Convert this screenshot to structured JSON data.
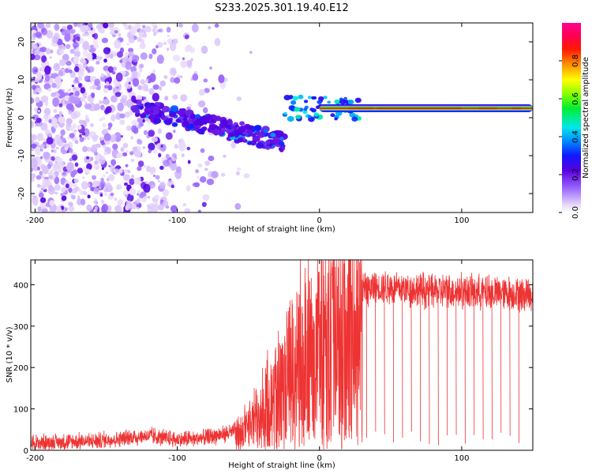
{
  "title": "S233.2025.301.19.40.E12",
  "colorbar": {
    "label": "Normalized spectral amplitude",
    "ticks": [
      "0.0",
      "0.2",
      "0.4",
      "0.6",
      "0.8"
    ],
    "tick_values": [
      0.0,
      0.2,
      0.4,
      0.6,
      0.8
    ],
    "range": [
      0,
      1
    ]
  },
  "chart_data": [
    {
      "type": "heatmap",
      "title": "S233.2025.301.19.40.E12",
      "xlabel": "Height of straight line (km)",
      "ylabel": "Frequency (Hz)",
      "xlim": [
        -203,
        150
      ],
      "ylim": [
        -25,
        25
      ],
      "xticks": [
        -200,
        -100,
        0,
        100
      ],
      "xtick_labels": [
        "-200",
        "-100",
        "0",
        "100"
      ],
      "yticks": [
        -20,
        -10,
        0,
        10,
        20
      ],
      "ytick_labels": [
        "-20",
        "-10",
        "0",
        "10",
        "20"
      ],
      "colormap": "rainbow (purple-blue-cyan-green-yellow-red-magenta)",
      "features": [
        {
          "description": "noise scatter",
          "x_range": [
            -203,
            -60
          ],
          "frequency_range": [
            -25,
            25
          ],
          "amplitude": 0.05
        },
        {
          "description": "wave packet",
          "x_range": [
            -130,
            -25
          ],
          "frequency_range": [
            -10,
            5
          ],
          "amplitude": 0.3
        },
        {
          "description": "steady tone",
          "x_range": [
            0,
            150
          ],
          "frequency": 2.5,
          "amplitude": 0.85
        }
      ]
    },
    {
      "type": "line",
      "xlabel": "Height of straight line (km)",
      "ylabel": "SNR (10 * v/v)",
      "xlim": [
        -203,
        150
      ],
      "ylim": [
        0,
        460
      ],
      "xticks": [
        -200,
        -100,
        0,
        100
      ],
      "xtick_labels": [
        "-200",
        "-100",
        "0",
        "100"
      ],
      "yticks": [
        0,
        100,
        200,
        300,
        400
      ],
      "ytick_labels": [
        "0",
        "100",
        "200",
        "300",
        "400"
      ],
      "series": [
        {
          "name": "SNR",
          "color": "#ee3333",
          "x": [
            -200,
            -180,
            -160,
            -140,
            -120,
            -100,
            -80,
            -60,
            -50,
            -40,
            -30,
            -20,
            -10,
            0,
            10,
            20,
            30,
            40,
            60,
            80,
            100,
            120,
            140,
            150
          ],
          "y": [
            18,
            20,
            22,
            28,
            35,
            25,
            30,
            45,
            70,
            110,
            160,
            220,
            270,
            300,
            330,
            360,
            385,
            395,
            390,
            385,
            385,
            380,
            380,
            375
          ]
        }
      ]
    }
  ]
}
